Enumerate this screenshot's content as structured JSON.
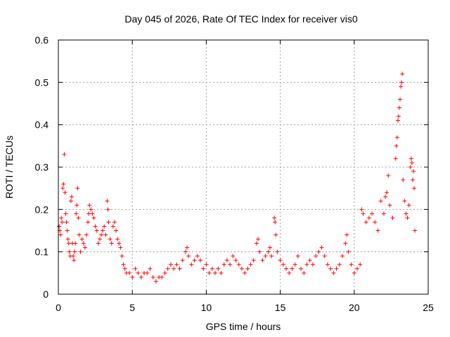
{
  "chart_data": {
    "type": "scatter",
    "title": "Day 045 of 2026, Rate Of TEC Index for receiver vis0",
    "xlabel": "GPS time / hours",
    "ylabel": "ROTI / TECUs",
    "xlim": [
      0,
      25
    ],
    "ylim": [
      0,
      0.6
    ],
    "xticks": [
      0,
      5,
      10,
      15,
      20,
      25
    ],
    "yticks": [
      0,
      0.1,
      0.2,
      0.3,
      0.4,
      0.5,
      0.6
    ],
    "xtick_labels": [
      "0",
      "5",
      "10",
      "15",
      "20",
      "25"
    ],
    "ytick_labels": [
      "0",
      "0.1",
      "0.2",
      "0.3",
      "0.4",
      "0.5",
      "0.6"
    ],
    "grid": true,
    "marker": "+",
    "color": "#ff0000",
    "points": [
      [
        0.05,
        0.16
      ],
      [
        0.1,
        0.15
      ],
      [
        0.15,
        0.14
      ],
      [
        0.2,
        0.18
      ],
      [
        0.25,
        0.17
      ],
      [
        0.3,
        0.25
      ],
      [
        0.35,
        0.26
      ],
      [
        0.4,
        0.33
      ],
      [
        0.45,
        0.24
      ],
      [
        0.5,
        0.19
      ],
      [
        0.55,
        0.17
      ],
      [
        0.6,
        0.15
      ],
      [
        0.65,
        0.13
      ],
      [
        0.7,
        0.12
      ],
      [
        0.75,
        0.1
      ],
      [
        0.8,
        0.09
      ],
      [
        0.85,
        0.22
      ],
      [
        0.9,
        0.23
      ],
      [
        0.95,
        0.12
      ],
      [
        1.0,
        0.09
      ],
      [
        1.05,
        0.08
      ],
      [
        1.1,
        0.1
      ],
      [
        1.15,
        0.12
      ],
      [
        1.2,
        0.19
      ],
      [
        1.25,
        0.21
      ],
      [
        1.3,
        0.25
      ],
      [
        1.35,
        0.18
      ],
      [
        1.4,
        0.14
      ],
      [
        1.5,
        0.1
      ],
      [
        1.6,
        0.13
      ],
      [
        1.7,
        0.12
      ],
      [
        1.8,
        0.11
      ],
      [
        1.9,
        0.14
      ],
      [
        2.0,
        0.17
      ],
      [
        2.05,
        0.19
      ],
      [
        2.1,
        0.21
      ],
      [
        2.2,
        0.2
      ],
      [
        2.3,
        0.19
      ],
      [
        2.4,
        0.18
      ],
      [
        2.5,
        0.16
      ],
      [
        2.6,
        0.15
      ],
      [
        2.7,
        0.12
      ],
      [
        2.8,
        0.13
      ],
      [
        2.9,
        0.14
      ],
      [
        3.0,
        0.15
      ],
      [
        3.1,
        0.16
      ],
      [
        3.2,
        0.14
      ],
      [
        3.3,
        0.22
      ],
      [
        3.35,
        0.2
      ],
      [
        3.4,
        0.17
      ],
      [
        3.5,
        0.13
      ],
      [
        3.6,
        0.12
      ],
      [
        3.7,
        0.16
      ],
      [
        3.8,
        0.17
      ],
      [
        3.9,
        0.15
      ],
      [
        4.0,
        0.13
      ],
      [
        4.1,
        0.12
      ],
      [
        4.2,
        0.11
      ],
      [
        4.3,
        0.09
      ],
      [
        4.4,
        0.07
      ],
      [
        4.5,
        0.06
      ],
      [
        4.6,
        0.05
      ],
      [
        4.8,
        0.05
      ],
      [
        5.0,
        0.04
      ],
      [
        5.2,
        0.06
      ],
      [
        5.4,
        0.05
      ],
      [
        5.6,
        0.04
      ],
      [
        5.8,
        0.05
      ],
      [
        6.0,
        0.05
      ],
      [
        6.2,
        0.06
      ],
      [
        6.4,
        0.04
      ],
      [
        6.6,
        0.03
      ],
      [
        6.8,
        0.04
      ],
      [
        7.0,
        0.04
      ],
      [
        7.2,
        0.05
      ],
      [
        7.4,
        0.06
      ],
      [
        7.6,
        0.07
      ],
      [
        7.8,
        0.06
      ],
      [
        8.0,
        0.07
      ],
      [
        8.2,
        0.06
      ],
      [
        8.4,
        0.08
      ],
      [
        8.6,
        0.1
      ],
      [
        8.7,
        0.11
      ],
      [
        8.8,
        0.09
      ],
      [
        9.0,
        0.07
      ],
      [
        9.2,
        0.08
      ],
      [
        9.4,
        0.09
      ],
      [
        9.6,
        0.08
      ],
      [
        9.8,
        0.06
      ],
      [
        10.0,
        0.07
      ],
      [
        10.2,
        0.05
      ],
      [
        10.4,
        0.06
      ],
      [
        10.6,
        0.05
      ],
      [
        10.8,
        0.06
      ],
      [
        11.0,
        0.05
      ],
      [
        11.2,
        0.07
      ],
      [
        11.4,
        0.08
      ],
      [
        11.6,
        0.07
      ],
      [
        11.8,
        0.09
      ],
      [
        12.0,
        0.08
      ],
      [
        12.2,
        0.07
      ],
      [
        12.4,
        0.06
      ],
      [
        12.6,
        0.05
      ],
      [
        12.8,
        0.06
      ],
      [
        13.0,
        0.07
      ],
      [
        13.2,
        0.08
      ],
      [
        13.4,
        0.12
      ],
      [
        13.5,
        0.13
      ],
      [
        13.6,
        0.1
      ],
      [
        13.8,
        0.08
      ],
      [
        14.0,
        0.09
      ],
      [
        14.2,
        0.1
      ],
      [
        14.3,
        0.11
      ],
      [
        14.4,
        0.09
      ],
      [
        14.6,
        0.18
      ],
      [
        14.65,
        0.17
      ],
      [
        14.7,
        0.14
      ],
      [
        14.8,
        0.1
      ],
      [
        15.0,
        0.08
      ],
      [
        15.2,
        0.07
      ],
      [
        15.4,
        0.06
      ],
      [
        15.6,
        0.05
      ],
      [
        15.8,
        0.06
      ],
      [
        16.0,
        0.07
      ],
      [
        16.2,
        0.09
      ],
      [
        16.4,
        0.06
      ],
      [
        16.6,
        0.05
      ],
      [
        16.8,
        0.07
      ],
      [
        17.0,
        0.08
      ],
      [
        17.2,
        0.07
      ],
      [
        17.4,
        0.09
      ],
      [
        17.6,
        0.1
      ],
      [
        17.8,
        0.11
      ],
      [
        18.0,
        0.09
      ],
      [
        18.2,
        0.07
      ],
      [
        18.4,
        0.06
      ],
      [
        18.6,
        0.05
      ],
      [
        18.8,
        0.06
      ],
      [
        19.0,
        0.07
      ],
      [
        19.2,
        0.09
      ],
      [
        19.4,
        0.12
      ],
      [
        19.5,
        0.14
      ],
      [
        19.6,
        0.1
      ],
      [
        19.8,
        0.07
      ],
      [
        20.0,
        0.05
      ],
      [
        20.2,
        0.06
      ],
      [
        20.4,
        0.07
      ],
      [
        20.5,
        0.2
      ],
      [
        20.6,
        0.19
      ],
      [
        20.8,
        0.17
      ],
      [
        21.0,
        0.18
      ],
      [
        21.2,
        0.19
      ],
      [
        21.4,
        0.17
      ],
      [
        21.6,
        0.15
      ],
      [
        21.8,
        0.22
      ],
      [
        22.0,
        0.19
      ],
      [
        22.1,
        0.23
      ],
      [
        22.2,
        0.24
      ],
      [
        22.3,
        0.28
      ],
      [
        22.4,
        0.21
      ],
      [
        22.6,
        0.18
      ],
      [
        22.8,
        0.32
      ],
      [
        22.85,
        0.35
      ],
      [
        22.9,
        0.37
      ],
      [
        22.95,
        0.41
      ],
      [
        23.0,
        0.42
      ],
      [
        23.05,
        0.44
      ],
      [
        23.1,
        0.46
      ],
      [
        23.15,
        0.49
      ],
      [
        23.2,
        0.5
      ],
      [
        23.25,
        0.52
      ],
      [
        23.3,
        0.27
      ],
      [
        23.4,
        0.22
      ],
      [
        23.5,
        0.19
      ],
      [
        23.6,
        0.18
      ],
      [
        23.7,
        0.21
      ],
      [
        23.8,
        0.3
      ],
      [
        23.85,
        0.32
      ],
      [
        23.9,
        0.31
      ],
      [
        23.95,
        0.27
      ],
      [
        24.0,
        0.29
      ],
      [
        24.05,
        0.25
      ],
      [
        24.1,
        0.15
      ]
    ]
  }
}
